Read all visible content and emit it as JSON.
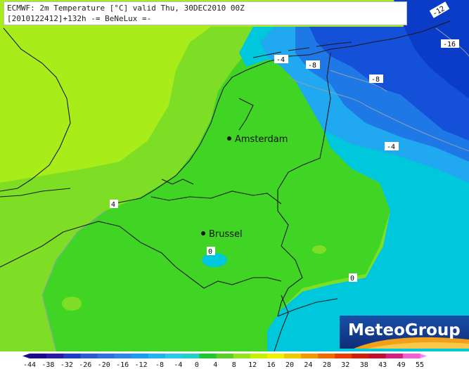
{
  "header": {
    "line1": "ECMWF: 2m Temperature [°C] valid Thu, 30DEC2010 00Z",
    "line2": "[2010122412]+132h -= BeNeLux =-"
  },
  "cities": [
    {
      "name": "Amsterdam"
    },
    {
      "name": "Brussel"
    }
  ],
  "contour_labels": [
    "-4",
    "-8",
    "-8",
    "-4",
    "-16",
    "-12",
    "4",
    "0",
    "0"
  ],
  "logo": {
    "text": "MeteoGroup"
  },
  "colorbar": {
    "ticks": [
      "-44",
      "-38",
      "-32",
      "-26",
      "-20",
      "-16",
      "-12",
      "-8",
      "-4",
      "0",
      "4",
      "8",
      "12",
      "16",
      "20",
      "24",
      "28",
      "32",
      "38",
      "43",
      "49",
      "55"
    ],
    "colors": [
      "#1a0a8c",
      "#2b1aa8",
      "#1f3cc8",
      "#2a5ad8",
      "#2f70e0",
      "#2c86ea",
      "#1a9cf0",
      "#22b4f0",
      "#2cc8e8",
      "#22d0c8",
      "#1ec832",
      "#5ad024",
      "#96e21c",
      "#c8f000",
      "#f0f000",
      "#f0c800",
      "#f09a00",
      "#f06a00",
      "#e83c00",
      "#d01e10",
      "#c01030",
      "#d02080",
      "#f060d0"
    ],
    "end_left": "#1a0a8c",
    "end_right": "#ff80ff"
  },
  "colors": {
    "yellow_green": "#a8ec1a",
    "light_green": "#7ede26",
    "green": "#40d424",
    "cyan": "#00c8dc",
    "light_blue": "#20a8f0",
    "blue": "#1e78e6",
    "dark_blue": "#1450d8",
    "sea_dark": "#0a3cc8",
    "border": "#1a1a1a"
  }
}
